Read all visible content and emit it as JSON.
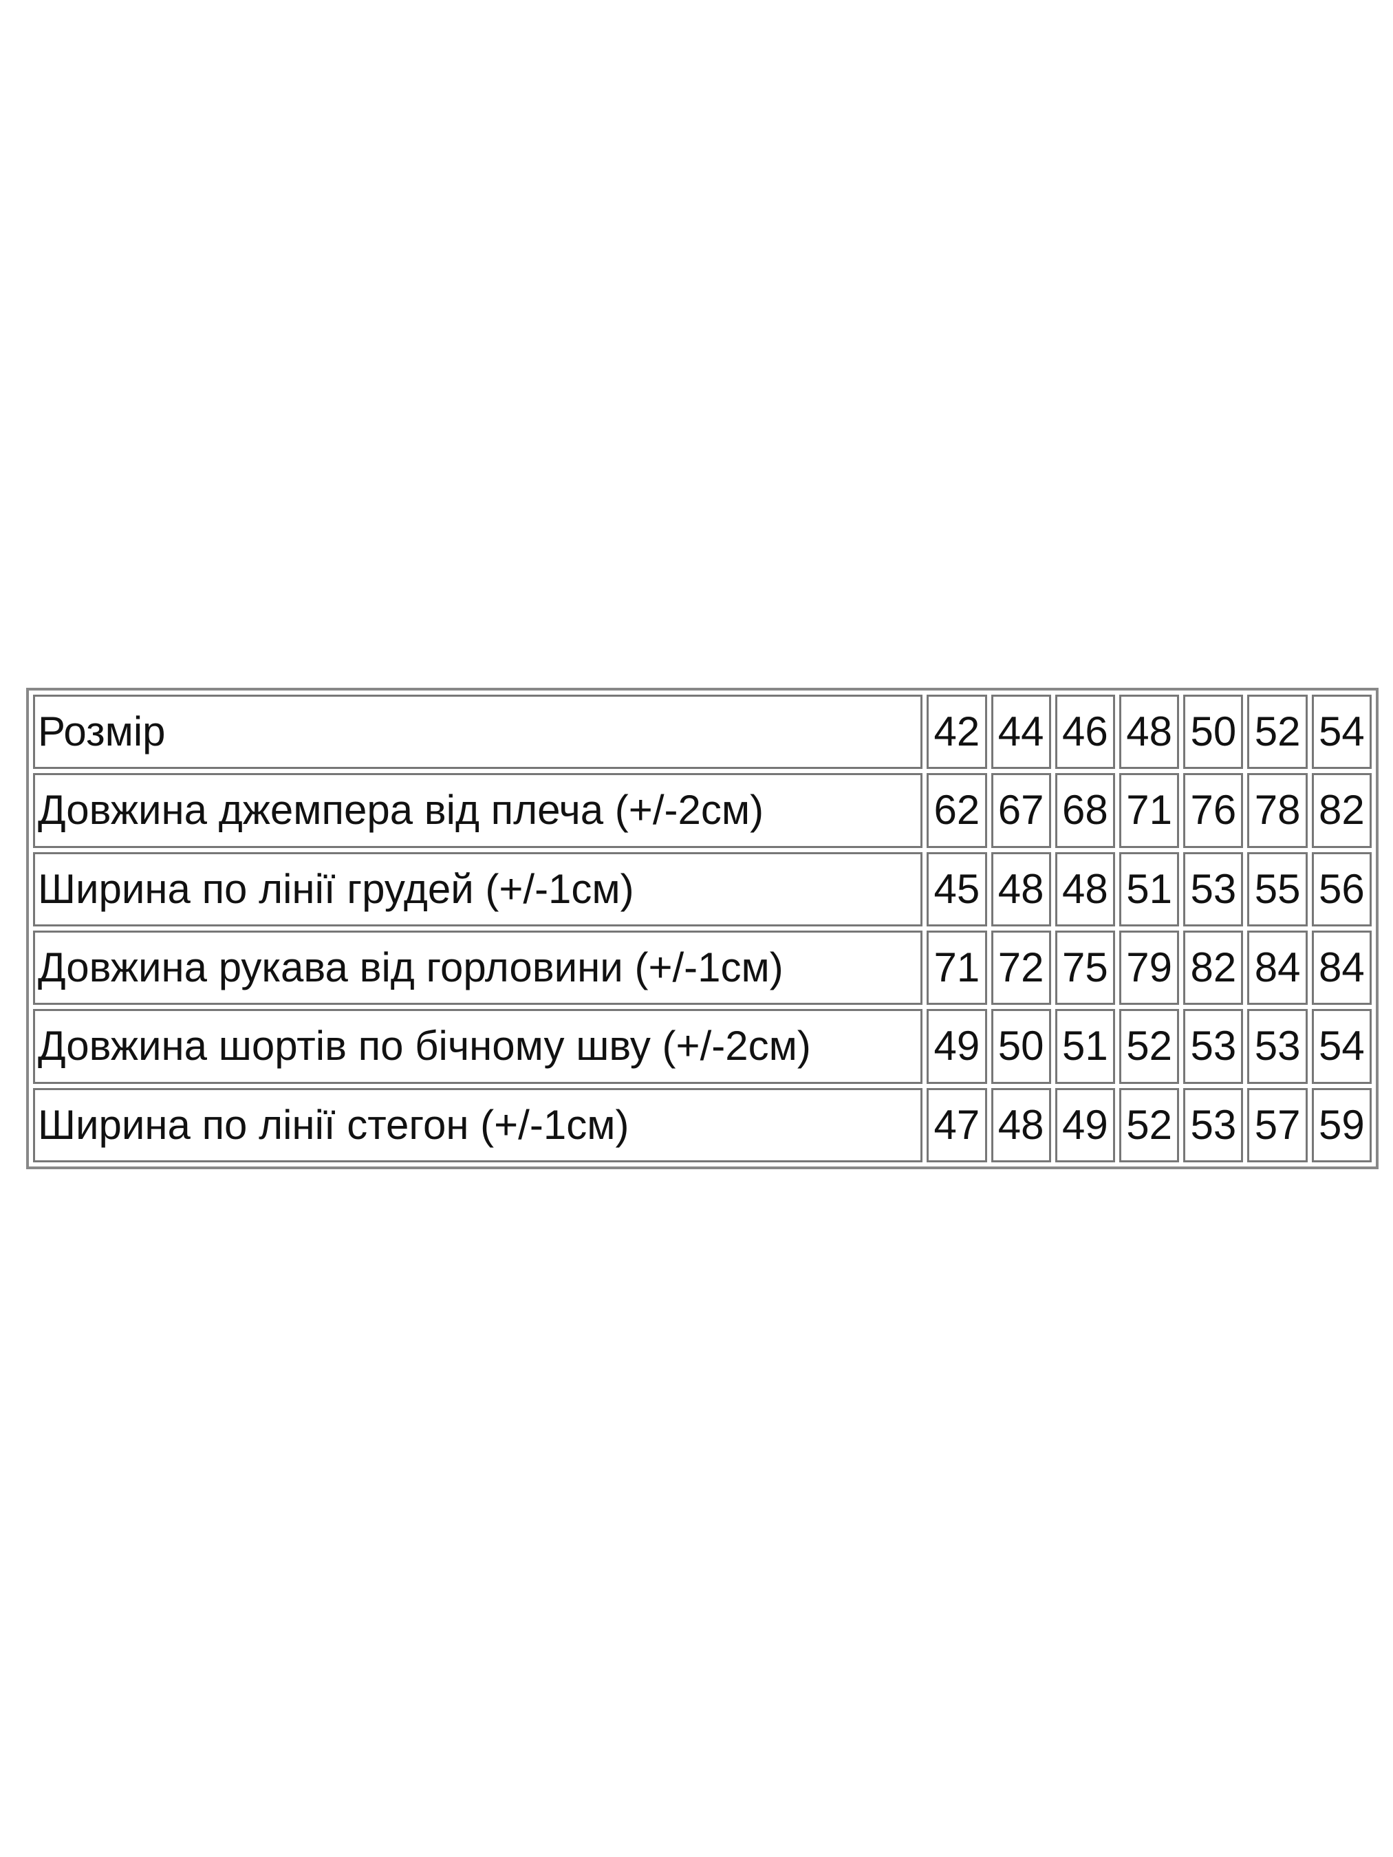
{
  "table": {
    "rows": [
      [
        "Розмір",
        42,
        44,
        46,
        48,
        50,
        52,
        54
      ],
      [
        "Довжина джемпера від плеча (+/-2см)",
        62,
        67,
        68,
        71,
        76,
        78,
        82
      ],
      [
        "Ширина по лінії грудей (+/-1см)",
        45,
        48,
        48,
        51,
        53,
        55,
        56
      ],
      [
        "Довжина рукава від горловини (+/-1см)",
        71,
        72,
        75,
        79,
        82,
        84,
        84
      ],
      [
        "Довжина шортів по бічному шву (+/-2см)",
        49,
        50,
        51,
        52,
        53,
        53,
        54
      ],
      [
        "Ширина по лінії стегон (+/-1см)",
        47,
        48,
        49,
        52,
        53,
        57,
        59
      ]
    ]
  }
}
